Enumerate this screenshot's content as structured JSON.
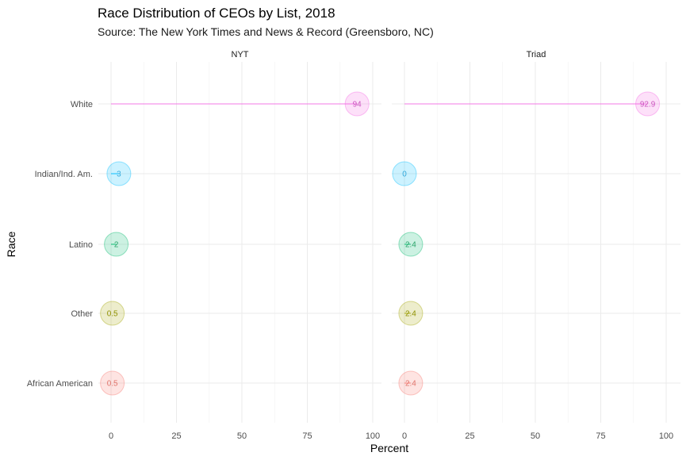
{
  "chart_data": {
    "type": "scatter",
    "subtype": "lollipop-faceted",
    "title": "Race Distribution of CEOs by List, 2018",
    "subtitle": "Source: The New York Times and News & Record (Greensboro, NC)",
    "xlabel": "Percent",
    "ylabel": "Race",
    "xlim": [
      0,
      100
    ],
    "xticks": [
      0,
      25,
      50,
      75,
      100
    ],
    "categories": [
      "White",
      "Indian/Ind. Am.",
      "Latino",
      "Other",
      "African American"
    ],
    "colors": {
      "White": "#F564E3",
      "Indian/Ind. Am.": "#00BFFF",
      "Latino": "#00BA6C",
      "Other": "#A3A500",
      "African American": "#F8766D"
    },
    "label_colors": {
      "White": "#cc55c0",
      "Indian/Ind. Am.": "#33aadd",
      "Latino": "#2aa56a",
      "Other": "#8f9100",
      "African American": "#e0756c"
    },
    "facets": [
      {
        "name": "NYT",
        "values": [
          94,
          3,
          2,
          0.5,
          0.5
        ],
        "labels": [
          "94",
          "3",
          "2",
          "0.5",
          "0.5"
        ]
      },
      {
        "name": "Triad",
        "values": [
          92.9,
          0,
          2.4,
          2.4,
          2.4
        ],
        "labels": [
          "92.9",
          "0",
          "2.4",
          "2.4",
          "2.4"
        ]
      }
    ],
    "grid": true,
    "legend": "none"
  }
}
